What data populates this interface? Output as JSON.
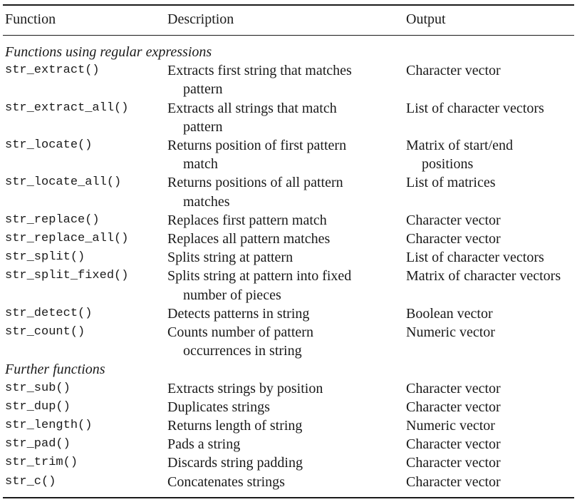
{
  "headers": {
    "function": "Function",
    "description": "Description",
    "output": "Output"
  },
  "sections": [
    {
      "title": "Functions using regular expressions",
      "rows": [
        {
          "fn": "str_extract()",
          "desc": [
            "Extracts first string that matches",
            "pattern"
          ],
          "out": [
            "Character vector"
          ]
        },
        {
          "fn": "str_extract_all()",
          "desc": [
            "Extracts all strings that match",
            "pattern"
          ],
          "out": [
            "List of character vectors"
          ]
        },
        {
          "fn": "str_locate()",
          "desc": [
            "Returns position of first pattern",
            "match"
          ],
          "out": [
            "Matrix of start/end",
            "positions"
          ]
        },
        {
          "fn": "str_locate_all()",
          "desc": [
            "Returns positions of all pattern",
            "matches"
          ],
          "out": [
            "List of matrices"
          ]
        },
        {
          "fn": "str_replace()",
          "desc": [
            "Replaces first pattern match"
          ],
          "out": [
            "Character vector"
          ]
        },
        {
          "fn": "str_replace_all()",
          "desc": [
            "Replaces all pattern matches"
          ],
          "out": [
            "Character vector"
          ]
        },
        {
          "fn": "str_split()",
          "desc": [
            "Splits string at pattern"
          ],
          "out": [
            "List of character vectors"
          ]
        },
        {
          "fn": "str_split_fixed()",
          "desc": [
            "Splits string at pattern into fixed",
            "number of pieces"
          ],
          "out": [
            "Matrix of character vectors"
          ]
        },
        {
          "fn": "str_detect()",
          "desc": [
            "Detects patterns in string"
          ],
          "out": [
            "Boolean vector"
          ]
        },
        {
          "fn": "str_count()",
          "desc": [
            "Counts number of pattern",
            "occurrences in string"
          ],
          "out": [
            "Numeric vector"
          ]
        }
      ]
    },
    {
      "title": "Further functions",
      "rows": [
        {
          "fn": "str_sub()",
          "desc": [
            "Extracts strings by position"
          ],
          "out": [
            "Character vector"
          ]
        },
        {
          "fn": "str_dup()",
          "desc": [
            "Duplicates strings"
          ],
          "out": [
            "Character vector"
          ]
        },
        {
          "fn": "str_length()",
          "desc": [
            "Returns length of string"
          ],
          "out": [
            "Numeric vector"
          ]
        },
        {
          "fn": "str_pad()",
          "desc": [
            "Pads a string"
          ],
          "out": [
            "Character vector"
          ]
        },
        {
          "fn": "str_trim()",
          "desc": [
            "Discards string padding"
          ],
          "out": [
            "Character vector"
          ]
        },
        {
          "fn": "str_c()",
          "desc": [
            "Concatenates strings"
          ],
          "out": [
            "Character vector"
          ]
        }
      ]
    }
  ]
}
